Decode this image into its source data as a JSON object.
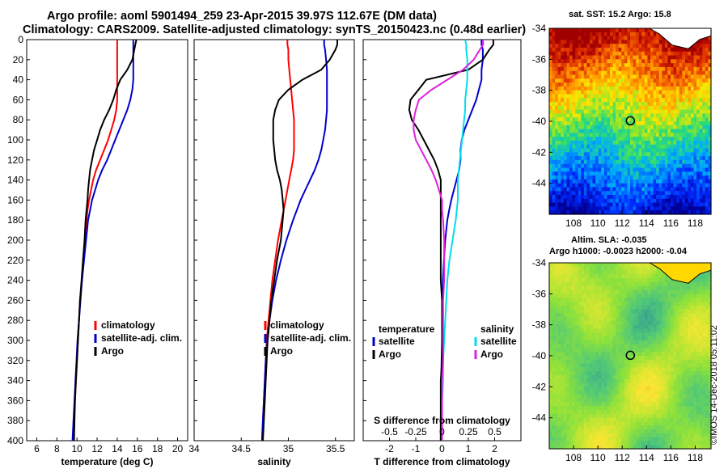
{
  "header": {
    "title_line1": "Argo profile: aoml 5901494_259 23-Apr-2015 39.97S 112.67E (DM data)",
    "title_line2": "Climatology: CARS2009. Satellite-adjusted climatology: synTS_20150423.nc (0.48d earlier)"
  },
  "colors": {
    "climatology": "#ff0000",
    "satellite": "#0000cc",
    "argo": "#000000",
    "sat_salinity": "#00ddee",
    "argo_salinity": "#dd22dd"
  },
  "chart_data": [
    {
      "type": "line",
      "id": "temperature",
      "xlabel": "temperature (deg C)",
      "ylabel": "",
      "xlim": [
        5,
        21
      ],
      "ylim": [
        400,
        0
      ],
      "xticks": [
        "6",
        "8",
        "10",
        "12",
        "14",
        "16",
        "18",
        "20"
      ],
      "xtick_values": [
        6,
        8,
        10,
        12,
        14,
        16,
        18,
        20
      ],
      "yticks": [
        "0",
        "20",
        "40",
        "60",
        "80",
        "100",
        "120",
        "140",
        "160",
        "180",
        "200",
        "220",
        "240",
        "260",
        "280",
        "300",
        "320",
        "340",
        "360",
        "380",
        "400"
      ],
      "depth": [
        0,
        5,
        10,
        20,
        30,
        40,
        50,
        60,
        70,
        80,
        90,
        100,
        110,
        120,
        130,
        140,
        150,
        160,
        170,
        180,
        200,
        220,
        240,
        260,
        280,
        300,
        320,
        340,
        360,
        380,
        400
      ],
      "series": [
        {
          "name": "climatology",
          "values": [
            14,
            14,
            14,
            14,
            14,
            14,
            14,
            14,
            13.9,
            13.7,
            13.4,
            13.1,
            12.7,
            12.3,
            11.9,
            11.6,
            11.4,
            11.2,
            11.05,
            10.95,
            10.8,
            10.6,
            10.5,
            10.3,
            10.2,
            10.1,
            10.0,
            9.9,
            9.8,
            9.7,
            9.6
          ]
        },
        {
          "name": "satellite-adj. clim.",
          "values": [
            15.6,
            15.6,
            15.6,
            15.6,
            15.6,
            15.6,
            15.5,
            15.3,
            15.0,
            14.6,
            14.2,
            13.8,
            13.4,
            13.0,
            12.5,
            12.1,
            11.8,
            11.5,
            11.3,
            11.1,
            10.9,
            10.7,
            10.5,
            10.35,
            10.2,
            10.05,
            9.95,
            9.85,
            9.75,
            9.65,
            9.55
          ]
        },
        {
          "name": "Argo",
          "values": [
            15.9,
            15.8,
            15.7,
            15.5,
            15.0,
            14.3,
            13.9,
            13.6,
            13.2,
            12.7,
            12.3,
            12.0,
            11.7,
            11.5,
            11.3,
            11.2,
            11.1,
            11.05,
            10.95,
            10.85,
            10.75,
            10.6,
            10.45,
            10.3,
            10.2,
            10.1,
            10.0,
            9.9,
            9.8,
            9.75,
            9.7
          ]
        }
      ],
      "legend": [
        "climatology",
        "satellite-adj. clim.",
        "Argo"
      ],
      "legend_position": "lower-right"
    },
    {
      "type": "line",
      "id": "salinity",
      "xlabel": "salinity",
      "ylabel": "",
      "xlim": [
        34,
        35.7
      ],
      "ylim": [
        400,
        0
      ],
      "xticks": [
        "34",
        "34.5",
        "35",
        "35.5"
      ],
      "xtick_values": [
        34,
        34.5,
        35,
        35.5
      ],
      "depth": [
        0,
        5,
        10,
        20,
        30,
        40,
        50,
        60,
        70,
        80,
        90,
        100,
        110,
        120,
        130,
        140,
        150,
        160,
        170,
        180,
        200,
        220,
        240,
        260,
        280,
        300,
        320,
        340,
        360,
        380,
        400
      ],
      "series": [
        {
          "name": "climatology",
          "values": [
            34.99,
            34.99,
            35.0,
            35.0,
            35.01,
            35.02,
            35.03,
            35.04,
            35.05,
            35.06,
            35.06,
            35.06,
            35.06,
            35.05,
            35.03,
            35.01,
            34.99,
            34.97,
            34.95,
            34.93,
            34.89,
            34.86,
            34.83,
            34.81,
            34.79,
            34.77,
            34.76,
            34.75,
            34.74,
            34.73,
            34.72
          ]
        },
        {
          "name": "satellite-adj. clim.",
          "values": [
            35.38,
            35.38,
            35.39,
            35.4,
            35.41,
            35.41,
            35.41,
            35.41,
            35.41,
            35.4,
            35.39,
            35.37,
            35.35,
            35.32,
            35.28,
            35.23,
            35.18,
            35.13,
            35.09,
            35.05,
            34.98,
            34.92,
            34.87,
            34.83,
            34.8,
            34.78,
            34.76,
            34.75,
            34.74,
            34.73,
            34.72
          ]
        },
        {
          "name": "Argo",
          "values": [
            35.52,
            35.52,
            35.5,
            35.44,
            35.35,
            35.15,
            35.0,
            34.9,
            34.86,
            34.84,
            34.84,
            34.84,
            34.85,
            34.86,
            34.88,
            34.91,
            34.93,
            34.94,
            34.95,
            34.94,
            34.92,
            34.88,
            34.85,
            34.82,
            34.8,
            34.78,
            34.77,
            34.76,
            34.75,
            34.74,
            34.73
          ]
        }
      ],
      "legend": [
        "climatology",
        "satellite-adj. clim.",
        "Argo"
      ],
      "legend_position": "lower-right"
    },
    {
      "type": "line",
      "id": "difference",
      "xlabel": "T difference from climatology",
      "xlabel2": "S difference from climatology",
      "xlim": [
        -3,
        3
      ],
      "ylim": [
        400,
        0
      ],
      "xticks": [
        "-2",
        "-1",
        "0",
        "1",
        "2"
      ],
      "xtick_values": [
        -2,
        -1,
        0,
        1,
        2
      ],
      "xticks2": [
        "-0.5",
        "-0.25",
        "0",
        "0.25",
        "0.5"
      ],
      "xtick2_values": [
        -0.5,
        -0.25,
        0,
        0.25,
        0.5
      ],
      "depth": [
        0,
        5,
        10,
        20,
        30,
        40,
        50,
        60,
        70,
        80,
        90,
        100,
        110,
        120,
        130,
        140,
        150,
        160,
        170,
        180,
        200,
        220,
        240,
        260,
        280,
        300,
        320,
        340,
        360,
        380,
        400
      ],
      "series": [
        {
          "name": "temperature satellite",
          "values": [
            1.5,
            1.5,
            1.55,
            1.55,
            1.5,
            1.5,
            1.4,
            1.3,
            1.15,
            1.0,
            0.85,
            0.75,
            0.7,
            0.7,
            0.65,
            0.55,
            0.45,
            0.35,
            0.27,
            0.2,
            0.12,
            0.07,
            0.03,
            0.03,
            0.02,
            0,
            -0.02,
            -0.03,
            -0.04,
            -0.05,
            -0.05
          ]
        },
        {
          "name": "temperature Argo",
          "values": [
            1.95,
            1.95,
            1.8,
            1.55,
            1.0,
            -0.6,
            -0.9,
            -1.2,
            -1.25,
            -1.15,
            -0.9,
            -0.7,
            -0.5,
            -0.3,
            -0.15,
            -0.05,
            -0.05,
            -0.05,
            -0.05,
            -0.05,
            -0.05,
            -0.05,
            -0.05,
            0,
            0,
            0,
            0,
            -0.05,
            -0.05,
            -0.05,
            -0.05
          ]
        },
        {
          "name": "salinity satellite",
          "values": [
            0.22,
            0.23,
            0.23,
            0.24,
            0.24,
            0.24,
            0.23,
            0.22,
            0.22,
            0.21,
            0.2,
            0.19,
            0.18,
            0.17,
            0.16,
            0.15,
            0.15,
            0.15,
            0.14,
            0.13,
            0.1,
            0.07,
            0.05,
            0.04,
            0.03,
            0.02,
            0.01,
            0.01,
            0,
            0,
            0
          ]
        },
        {
          "name": "salinity Argo",
          "values": [
            0.39,
            0.39,
            0.36,
            0.3,
            0.2,
            0.05,
            -0.1,
            -0.22,
            -0.25,
            -0.27,
            -0.27,
            -0.25,
            -0.2,
            -0.15,
            -0.1,
            -0.06,
            -0.03,
            0,
            0.0,
            0.01,
            0.02,
            0.02,
            0.02,
            0.01,
            0.01,
            0.01,
            0.01,
            0.0,
            0.0,
            0.0,
            0.0
          ]
        }
      ],
      "salinity_xlim": [
        -0.75,
        0.75
      ],
      "legend_left_title": "temperature",
      "legend_right_title": "salinity",
      "legend_left": [
        "satellite",
        "Argo"
      ],
      "legend_right": [
        "satellite",
        "Argo"
      ],
      "legend_position": "lower-right"
    },
    {
      "type": "heatmap",
      "id": "sst_map",
      "title": "sat. SST: 15.2 Argo: 15.8",
      "xlim": [
        106,
        119.3
      ],
      "ylim": [
        -46,
        -34
      ],
      "xticks": [
        "108",
        "110",
        "112",
        "114",
        "116",
        "118"
      ],
      "xtick_values": [
        108,
        110,
        112,
        114,
        116,
        118
      ],
      "yticks": [
        "-34",
        "-36",
        "-38",
        "-40",
        "-42",
        "-44"
      ],
      "ytick_values": [
        -34,
        -36,
        -38,
        -40,
        -42,
        -44
      ],
      "marker": {
        "lon": 112.67,
        "lat": -39.97
      }
    },
    {
      "type": "heatmap",
      "id": "sla_map",
      "title_line1": "Altim. SLA: -0.035",
      "title_line2": "Argo h1000: -0.0023 h2000: -0.04",
      "xlim": [
        106,
        119.3
      ],
      "ylim": [
        -46,
        -34
      ],
      "xticks": [
        "108",
        "110",
        "112",
        "114",
        "116",
        "118"
      ],
      "xtick_values": [
        108,
        110,
        112,
        114,
        116,
        118
      ],
      "yticks": [
        "-34",
        "-36",
        "-38",
        "-40",
        "-42",
        "-44"
      ],
      "ytick_values": [
        -34,
        -36,
        -38,
        -40,
        -42,
        -44
      ],
      "marker": {
        "lon": 112.67,
        "lat": -39.97
      }
    }
  ],
  "credit": "©IMOS 14-Dec-2018 05:11:02"
}
